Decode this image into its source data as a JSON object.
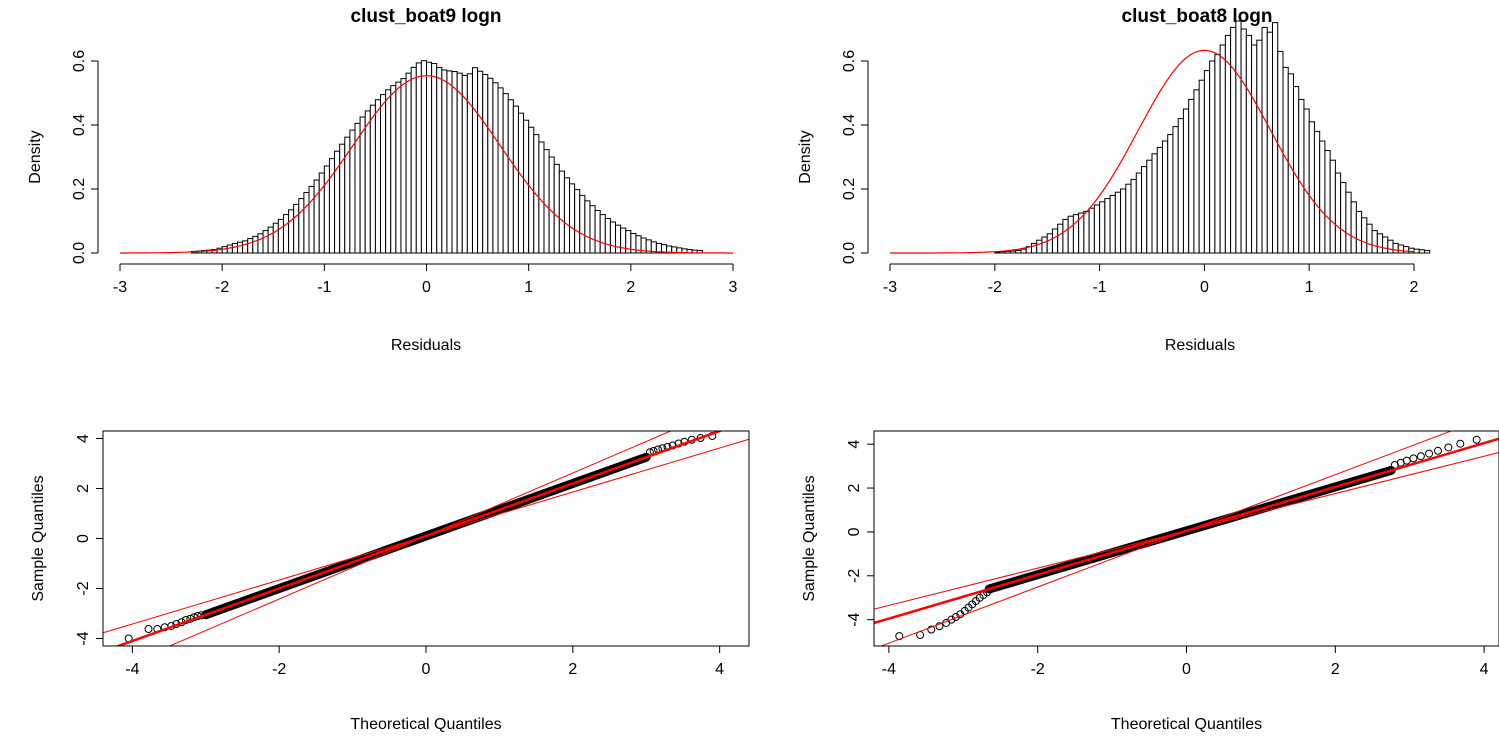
{
  "chart_data": [
    {
      "type": "histogram",
      "title": "clust_boat9 logn",
      "xlabel": "Residuals",
      "ylabel": "Density",
      "xlim": [
        -3,
        3
      ],
      "ylim": [
        0,
        0.6
      ],
      "x_ticks": [
        "-3",
        "-2",
        "-1",
        "0",
        "1",
        "2",
        "3"
      ],
      "y_ticks": [
        "0.0",
        "0.2",
        "0.4",
        "0.6"
      ],
      "bin_start": -2.3,
      "bin_width": 0.05,
      "densities": [
        0.005,
        0.006,
        0.008,
        0.009,
        0.011,
        0.015,
        0.02,
        0.025,
        0.03,
        0.034,
        0.038,
        0.045,
        0.052,
        0.06,
        0.07,
        0.081,
        0.093,
        0.105,
        0.12,
        0.135,
        0.152,
        0.17,
        0.189,
        0.208,
        0.228,
        0.25,
        0.272,
        0.295,
        0.318,
        0.34,
        0.362,
        0.384,
        0.405,
        0.425,
        0.444,
        0.462,
        0.479,
        0.495,
        0.51,
        0.523,
        0.534,
        0.545,
        0.562,
        0.58,
        0.594,
        0.601,
        0.596,
        0.592,
        0.58,
        0.572,
        0.569,
        0.567,
        0.562,
        0.555,
        0.56,
        0.579,
        0.568,
        0.558,
        0.546,
        0.532,
        0.516,
        0.498,
        0.479,
        0.459,
        0.437,
        0.415,
        0.393,
        0.37,
        0.347,
        0.323,
        0.3,
        0.277,
        0.256,
        0.235,
        0.216,
        0.198,
        0.18,
        0.163,
        0.148,
        0.133,
        0.12,
        0.108,
        0.097,
        0.087,
        0.078,
        0.07,
        0.061,
        0.054,
        0.047,
        0.041,
        0.035,
        0.03,
        0.026,
        0.022,
        0.019,
        0.016,
        0.013,
        0.011,
        0.009,
        0.008
      ],
      "density_curve": {
        "color": "#ff0000",
        "mean": 0,
        "sd": 0.72
      },
      "bar_color": "#ffffff",
      "bar_stroke": "#000000"
    },
    {
      "type": "histogram",
      "title": "clust_boat8 logn",
      "xlabel": "Residuals",
      "ylabel": "Density",
      "xlim": [
        -3,
        2.8
      ],
      "ylim": [
        0,
        0.6
      ],
      "x_ticks": [
        "-3",
        "-2",
        "-1",
        "0",
        "1",
        "2"
      ],
      "y_ticks": [
        "0.0",
        "0.2",
        "0.4",
        "0.6"
      ],
      "bin_start": -2.0,
      "bin_width": 0.05,
      "densities": [
        0.003,
        0.004,
        0.005,
        0.006,
        0.008,
        0.012,
        0.02,
        0.03,
        0.04,
        0.05,
        0.06,
        0.075,
        0.09,
        0.105,
        0.115,
        0.12,
        0.125,
        0.13,
        0.14,
        0.15,
        0.16,
        0.17,
        0.18,
        0.19,
        0.2,
        0.215,
        0.23,
        0.25,
        0.27,
        0.29,
        0.31,
        0.33,
        0.35,
        0.37,
        0.395,
        0.42,
        0.45,
        0.48,
        0.51,
        0.54,
        0.57,
        0.6,
        0.62,
        0.65,
        0.68,
        0.705,
        0.725,
        0.7,
        0.68,
        0.65,
        0.665,
        0.705,
        0.69,
        0.72,
        0.63,
        0.58,
        0.56,
        0.52,
        0.48,
        0.45,
        0.41,
        0.38,
        0.35,
        0.32,
        0.29,
        0.25,
        0.22,
        0.19,
        0.16,
        0.13,
        0.11,
        0.09,
        0.07,
        0.06,
        0.05,
        0.04,
        0.03,
        0.025,
        0.02,
        0.015,
        0.012,
        0.01,
        0.008
      ],
      "density_curve": {
        "color": "#ff0000",
        "mean": 0,
        "sd": 0.63
      },
      "bar_color": "#ffffff",
      "bar_stroke": "#000000"
    },
    {
      "type": "scatter",
      "title": "",
      "xlabel": "Theoretical Quantiles",
      "ylabel": "Sample Quantiles",
      "xlim": [
        -4.4,
        4.4
      ],
      "ylim": [
        -4.3,
        4.3
      ],
      "x_ticks": [
        "-4",
        "-2",
        "0",
        "2",
        "4"
      ],
      "y_ticks": [
        "-4",
        "-2",
        "0",
        "2",
        "4"
      ],
      "points": [
        [
          -4.05,
          -4.0
        ],
        [
          -3.78,
          -3.62
        ],
        [
          -3.66,
          -3.62
        ],
        [
          -3.56,
          -3.55
        ],
        [
          -3.47,
          -3.5
        ],
        [
          -3.4,
          -3.42
        ],
        [
          -3.33,
          -3.35
        ],
        [
          -3.27,
          -3.26
        ],
        [
          -3.21,
          -3.21
        ],
        [
          -3.16,
          -3.15
        ],
        [
          -3.11,
          -3.1
        ],
        [
          -3.06,
          -3.07
        ],
        [
          3.05,
          3.45
        ],
        [
          3.1,
          3.5
        ],
        [
          3.16,
          3.56
        ],
        [
          3.22,
          3.61
        ],
        [
          3.29,
          3.66
        ],
        [
          3.36,
          3.72
        ],
        [
          3.44,
          3.8
        ],
        [
          3.52,
          3.87
        ],
        [
          3.62,
          3.95
        ],
        [
          3.74,
          4.02
        ],
        [
          3.9,
          4.1
        ]
      ],
      "line": {
        "slope": 1.05,
        "intercept": 0.1,
        "color": "#ff0000"
      },
      "bands": [
        {
          "slope": 0.88,
          "intercept": 0.1
        },
        {
          "slope": 1.26,
          "intercept": 0.1
        }
      ],
      "marker": "open-circle"
    },
    {
      "type": "scatter",
      "title": "",
      "xlabel": "Theoretical Quantiles",
      "ylabel": "Sample Quantiles",
      "xlim": [
        -4.2,
        4.2
      ],
      "ylim": [
        -5.2,
        4.6
      ],
      "x_ticks": [
        "-4",
        "-2",
        "0",
        "2",
        "4"
      ],
      "y_ticks": [
        "-4",
        "-2",
        "0",
        "2",
        "4"
      ],
      "points": [
        [
          -3.86,
          -4.75
        ],
        [
          -3.58,
          -4.7
        ],
        [
          -3.43,
          -4.45
        ],
        [
          -3.32,
          -4.3
        ],
        [
          -3.23,
          -4.15
        ],
        [
          -3.16,
          -4.0
        ],
        [
          -3.1,
          -3.88
        ],
        [
          -3.04,
          -3.75
        ],
        [
          -2.98,
          -3.6
        ],
        [
          -2.93,
          -3.45
        ],
        [
          -2.88,
          -3.3
        ],
        [
          -2.83,
          -3.15
        ],
        [
          -2.78,
          -3.0
        ],
        [
          -2.73,
          -2.88
        ],
        [
          -2.68,
          -2.75
        ],
        [
          2.8,
          3.05
        ],
        [
          2.88,
          3.15
        ],
        [
          2.96,
          3.25
        ],
        [
          3.05,
          3.35
        ],
        [
          3.15,
          3.45
        ],
        [
          3.26,
          3.57
        ],
        [
          3.38,
          3.7
        ],
        [
          3.52,
          3.85
        ],
        [
          3.68,
          4.02
        ],
        [
          3.9,
          4.2
        ]
      ],
      "line": {
        "slope": 1.0,
        "intercept": 0.05,
        "color": "#ff0000"
      },
      "bands": [
        {
          "slope": 0.85,
          "intercept": 0.05
        },
        {
          "slope": 1.28,
          "intercept": 0.05
        }
      ],
      "marker": "open-circle"
    }
  ]
}
